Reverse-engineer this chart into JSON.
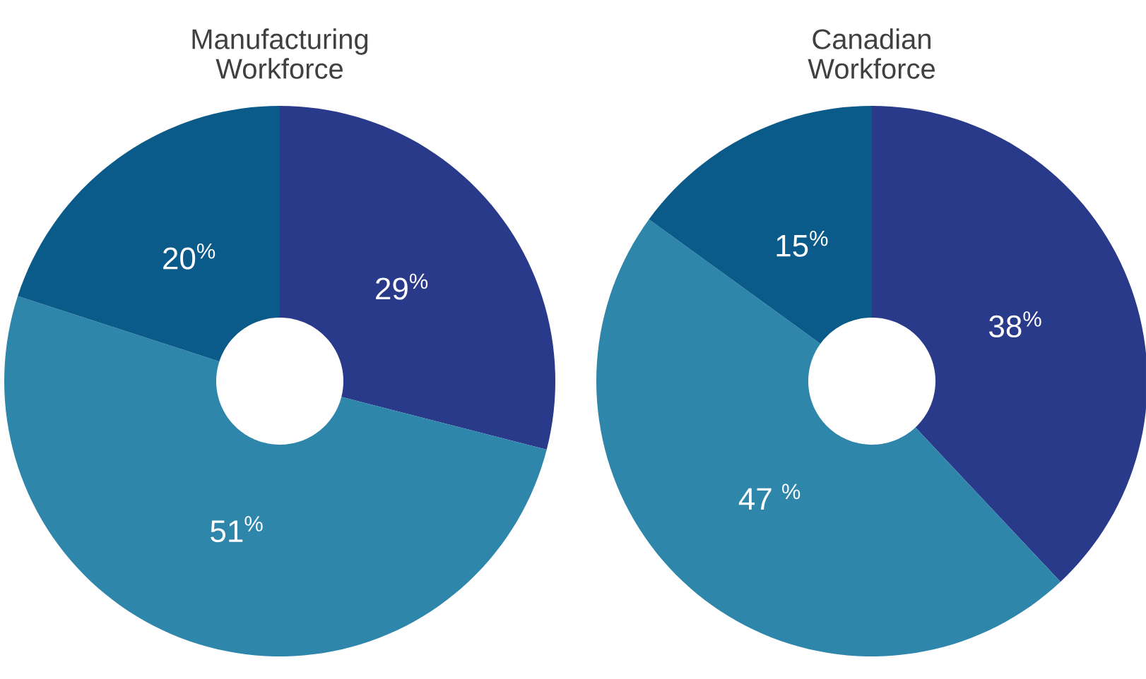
{
  "chart_data": [
    {
      "type": "donut",
      "title": "Manufacturing Workforce",
      "categories": [
        null,
        null,
        null
      ],
      "values": [
        29,
        51,
        20
      ],
      "colors": [
        "#2a3a8a",
        "#2e86ab",
        "#0a5a8a"
      ],
      "value_labels": [
        "29$^{%}$",
        "51$^{%}$",
        "20$^{%}$"
      ]
    },
    {
      "type": "donut",
      "title": "Canadian Workforce",
      "categories": [
        null,
        null,
        null
      ],
      "values": [
        38,
        47,
        15
      ],
      "colors": [
        "#2a3a8a",
        "#2e86ab",
        "#0a5a8a"
      ],
      "value_labels": [
        "38$^{%}$",
        "47 $^{%}$",
        "15$^{%}$"
      ]
    }
  ]
}
